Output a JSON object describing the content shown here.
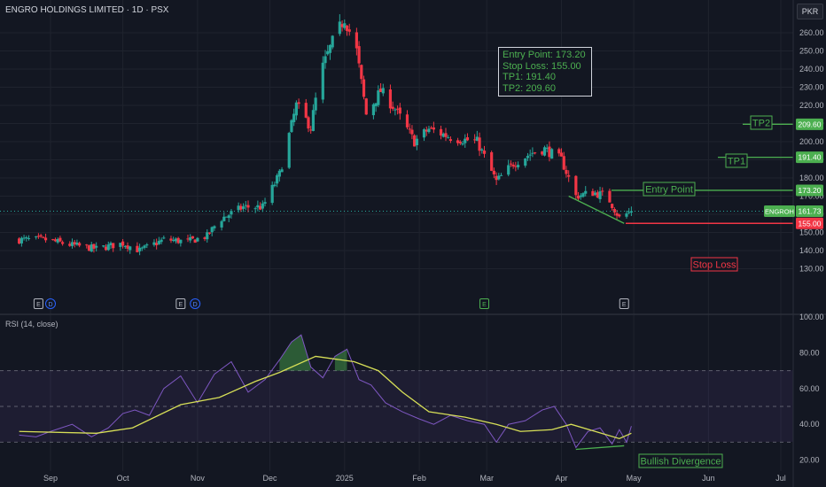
{
  "header": {
    "title": "ENGRO HOLDINGS LIMITED · 1D · PSX",
    "currency": "PKR",
    "rsi_title": "RSI (14, close)"
  },
  "trade_box": {
    "entry": "Entry Point: 173.20",
    "stop": "Stop Loss: 155.00",
    "tp1": "TP1: 191.40",
    "tp2": "TP2: 209.60"
  },
  "labels": {
    "tp2": "TP2",
    "tp1": "TP1",
    "entry": "Entry Point",
    "stop": "Stop Loss",
    "bullish": "Bullish Divergence"
  },
  "price_tags": [
    {
      "text": "209.60",
      "value": 209.6,
      "color": "#4caf50"
    },
    {
      "text": "191.40",
      "value": 191.4,
      "color": "#4caf50"
    },
    {
      "text": "173.20",
      "value": 173.2,
      "color": "#4caf50"
    },
    {
      "text": "161.73",
      "value": 161.73,
      "color": "#4caf50",
      "ticker": "ENGROH"
    },
    {
      "text": "155.00",
      "value": 155.0,
      "color": "#f23645"
    }
  ],
  "chart_data": [
    {
      "type": "candlestick",
      "title": "ENGRO HOLDINGS LIMITED · 1D · PSX",
      "ylim": [
        124,
        268
      ],
      "y_ticks": [
        "130.00",
        "140.00",
        "150.00",
        "160.00",
        "170.00",
        "180.00",
        "190.00",
        "200.00",
        "210.00",
        "220.00",
        "230.00",
        "240.00",
        "250.00",
        "260.00"
      ],
      "y_tick_values": [
        130,
        140,
        150,
        160,
        170,
        180,
        190,
        200,
        210,
        220,
        230,
        240,
        250,
        260
      ],
      "x_ticks": [
        "Sep",
        "Oct",
        "Nov",
        "Dec",
        "2025",
        "Feb",
        "Mar",
        "Apr",
        "May",
        "Jun",
        "Jul"
      ],
      "x_tick_dates": [
        "2024-09-01",
        "2024-10-01",
        "2024-11-01",
        "2024-12-01",
        "2025-01-01",
        "2025-02-01",
        "2025-03-01",
        "2025-04-01",
        "2025-05-01",
        "2025-06-01",
        "2025-07-01"
      ],
      "first_candle_date": "2024-08-19",
      "last_candle_date": "2025-04-30",
      "close_path": [
        {
          "date": "2024-08-19",
          "close": 146
        },
        {
          "date": "2024-08-30",
          "close": 146
        },
        {
          "date": "2024-09-10",
          "close": 143
        },
        {
          "date": "2024-09-20",
          "close": 141
        },
        {
          "date": "2024-10-01",
          "close": 144
        },
        {
          "date": "2024-10-08",
          "close": 140
        },
        {
          "date": "2024-10-18",
          "close": 146
        },
        {
          "date": "2024-10-28",
          "close": 145
        },
        {
          "date": "2024-11-05",
          "close": 148
        },
        {
          "date": "2024-11-10",
          "close": 157
        },
        {
          "date": "2024-11-20",
          "close": 164
        },
        {
          "date": "2024-11-28",
          "close": 164
        },
        {
          "date": "2024-12-05",
          "close": 182
        },
        {
          "date": "2024-12-12",
          "close": 220
        },
        {
          "date": "2024-12-18",
          "close": 208
        },
        {
          "date": "2024-12-22",
          "close": 238
        },
        {
          "date": "2024-12-27",
          "close": 255
        },
        {
          "date": "2025-01-01",
          "close": 268
        },
        {
          "date": "2025-01-06",
          "close": 250
        },
        {
          "date": "2025-01-10",
          "close": 215
        },
        {
          "date": "2025-01-16",
          "close": 228
        },
        {
          "date": "2025-01-22",
          "close": 218
        },
        {
          "date": "2025-01-30",
          "close": 200
        },
        {
          "date": "2025-02-05",
          "close": 207
        },
        {
          "date": "2025-02-15",
          "close": 202
        },
        {
          "date": "2025-02-25",
          "close": 200
        },
        {
          "date": "2025-03-05",
          "close": 178
        },
        {
          "date": "2025-03-12",
          "close": 188
        },
        {
          "date": "2025-03-20",
          "close": 194
        },
        {
          "date": "2025-03-25",
          "close": 196
        },
        {
          "date": "2025-04-01",
          "close": 190
        },
        {
          "date": "2025-04-07",
          "close": 170
        },
        {
          "date": "2025-04-14",
          "close": 172
        },
        {
          "date": "2025-04-20",
          "close": 170
        },
        {
          "date": "2025-04-25",
          "close": 158
        },
        {
          "date": "2025-04-30",
          "close": 161.73
        }
      ],
      "levels": {
        "tp2": 209.6,
        "tp1": 191.4,
        "entry": 173.2,
        "last": 161.73,
        "stop": 155.0
      },
      "events": [
        {
          "label": "E",
          "date": "2024-08-27",
          "kind": "earnings"
        },
        {
          "label": "D",
          "date": "2024-09-01",
          "kind": "dividend"
        },
        {
          "label": "E",
          "date": "2024-10-25",
          "kind": "earnings"
        },
        {
          "label": "D",
          "date": "2024-10-31",
          "kind": "dividend"
        },
        {
          "label": "E",
          "date": "2025-02-28",
          "kind": "earnings"
        },
        {
          "label": "E",
          "date": "2025-04-27",
          "kind": "earnings"
        }
      ],
      "trendline": [
        {
          "date": "2025-04-04",
          "value": 170
        },
        {
          "date": "2025-04-27",
          "value": 155
        }
      ]
    },
    {
      "type": "line",
      "title": "RSI (14, close)",
      "ylim": [
        14,
        100
      ],
      "y_ticks": [
        "20.00",
        "40.00",
        "60.00",
        "80.00",
        "100.00"
      ],
      "y_tick_values": [
        20,
        40,
        60,
        80,
        100
      ],
      "bands": {
        "upper": 70,
        "middle": 50,
        "lower": 30
      },
      "series": [
        {
          "color": "#7e57c2",
          "points": [
            {
              "date": "2024-08-19",
              "rsi": 34
            },
            {
              "date": "2024-08-26",
              "rsi": 33
            },
            {
              "date": "2024-09-01",
              "rsi": 36
            },
            {
              "date": "2024-09-10",
              "rsi": 40
            },
            {
              "date": "2024-09-18",
              "rsi": 33
            },
            {
              "date": "2024-09-25",
              "rsi": 38
            },
            {
              "date": "2024-10-01",
              "rsi": 46
            },
            {
              "date": "2024-10-06",
              "rsi": 48
            },
            {
              "date": "2024-10-12",
              "rsi": 45
            },
            {
              "date": "2024-10-18",
              "rsi": 60
            },
            {
              "date": "2024-10-25",
              "rsi": 67
            },
            {
              "date": "2024-11-01",
              "rsi": 52
            },
            {
              "date": "2024-11-08",
              "rsi": 68
            },
            {
              "date": "2024-11-15",
              "rsi": 75
            },
            {
              "date": "2024-11-22",
              "rsi": 58
            },
            {
              "date": "2024-11-29",
              "rsi": 65
            },
            {
              "date": "2024-12-05",
              "rsi": 76
            },
            {
              "date": "2024-12-10",
              "rsi": 86
            },
            {
              "date": "2024-12-14",
              "rsi": 90
            },
            {
              "date": "2024-12-18",
              "rsi": 72
            },
            {
              "date": "2024-12-23",
              "rsi": 66
            },
            {
              "date": "2024-12-28",
              "rsi": 78
            },
            {
              "date": "2025-01-02",
              "rsi": 82
            },
            {
              "date": "2025-01-07",
              "rsi": 65
            },
            {
              "date": "2025-01-12",
              "rsi": 62
            },
            {
              "date": "2025-01-18",
              "rsi": 52
            },
            {
              "date": "2025-01-25",
              "rsi": 47
            },
            {
              "date": "2025-02-01",
              "rsi": 43
            },
            {
              "date": "2025-02-07",
              "rsi": 40
            },
            {
              "date": "2025-02-14",
              "rsi": 45
            },
            {
              "date": "2025-02-21",
              "rsi": 42
            },
            {
              "date": "2025-02-28",
              "rsi": 40
            },
            {
              "date": "2025-03-05",
              "rsi": 30
            },
            {
              "date": "2025-03-10",
              "rsi": 40
            },
            {
              "date": "2025-03-17",
              "rsi": 42
            },
            {
              "date": "2025-03-24",
              "rsi": 48
            },
            {
              "date": "2025-03-29",
              "rsi": 50
            },
            {
              "date": "2025-04-03",
              "rsi": 40
            },
            {
              "date": "2025-04-07",
              "rsi": 27
            },
            {
              "date": "2025-04-12",
              "rsi": 36
            },
            {
              "date": "2025-04-17",
              "rsi": 38
            },
            {
              "date": "2025-04-22",
              "rsi": 29
            },
            {
              "date": "2025-04-25",
              "rsi": 37
            },
            {
              "date": "2025-04-28",
              "rsi": 30
            },
            {
              "date": "2025-04-30",
              "rsi": 39
            }
          ]
        },
        {
          "color": "#d7df57",
          "points": [
            {
              "date": "2024-08-19",
              "rsi": 36
            },
            {
              "date": "2024-09-20",
              "rsi": 35
            },
            {
              "date": "2024-10-05",
              "rsi": 38
            },
            {
              "date": "2024-10-25",
              "rsi": 51
            },
            {
              "date": "2024-11-10",
              "rsi": 55
            },
            {
              "date": "2024-11-25",
              "rsi": 64
            },
            {
              "date": "2024-12-05",
              "rsi": 69
            },
            {
              "date": "2024-12-20",
              "rsi": 78
            },
            {
              "date": "2025-01-05",
              "rsi": 75
            },
            {
              "date": "2025-01-15",
              "rsi": 70
            },
            {
              "date": "2025-01-25",
              "rsi": 58
            },
            {
              "date": "2025-02-05",
              "rsi": 47
            },
            {
              "date": "2025-02-20",
              "rsi": 44
            },
            {
              "date": "2025-03-05",
              "rsi": 40
            },
            {
              "date": "2025-03-15",
              "rsi": 36
            },
            {
              "date": "2025-03-28",
              "rsi": 37
            },
            {
              "date": "2025-04-05",
              "rsi": 40
            },
            {
              "date": "2025-04-15",
              "rsi": 36
            },
            {
              "date": "2025-04-25",
              "rsi": 32
            },
            {
              "date": "2025-04-30",
              "rsi": 35
            }
          ]
        }
      ],
      "divergence_line": [
        {
          "date": "2025-04-07",
          "rsi": 26
        },
        {
          "date": "2025-04-27",
          "rsi": 28
        }
      ]
    }
  ],
  "colors": {
    "up": "#26a69a",
    "down": "#f23645",
    "green": "#4caf50",
    "rsi": "#7e57c2",
    "rsi_ma": "#d7df57",
    "grid": "#1f232e",
    "bg": "#131722"
  }
}
